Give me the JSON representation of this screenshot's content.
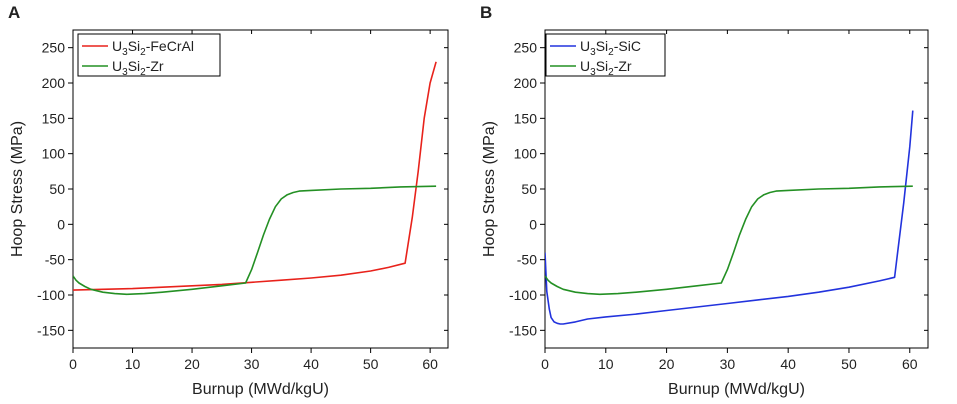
{
  "chart_data": [
    {
      "panel": "A",
      "type": "line",
      "xlabel": "Burnup (MWd/kgU)",
      "ylabel": "Hoop Stress (MPa)",
      "xlim": [
        0,
        63
      ],
      "ylim": [
        -175,
        275
      ],
      "xticks": [
        "0",
        "10",
        "20",
        "30",
        "40",
        "50",
        "60"
      ],
      "yticks": [
        "-150",
        "-100",
        "-50",
        "0",
        "50",
        "100",
        "150",
        "200",
        "250"
      ],
      "legend_position": "top-left",
      "series": [
        {
          "name": "U3Si2-FeCrAl",
          "legend_base": "U",
          "legend_parts": [
            [
              "3",
              "Si"
            ],
            [
              "2",
              "-FeCrAl"
            ]
          ],
          "color": "#e8221b",
          "x": [
            0,
            5,
            10,
            15,
            20,
            25,
            30,
            35,
            40,
            45,
            50,
            53,
            55.8,
            57,
            58,
            59,
            60,
            61
          ],
          "y": [
            -93,
            -92,
            -91,
            -89,
            -87,
            -85,
            -82,
            -79,
            -76,
            -72,
            -66,
            -61,
            -55,
            10,
            75,
            150,
            200,
            230
          ]
        },
        {
          "name": "U3Si2-Zr",
          "legend_base": "U",
          "legend_parts": [
            [
              "3",
              "Si"
            ],
            [
              "2",
              "-Zr"
            ]
          ],
          "color": "#249024",
          "x": [
            0,
            0.5,
            1,
            2,
            3,
            5,
            7,
            9,
            12,
            15,
            20,
            25,
            29,
            30,
            31,
            32,
            33,
            34,
            35,
            36,
            37,
            38,
            40,
            45,
            50,
            55,
            61
          ],
          "y": [
            -73,
            -79,
            -83,
            -88,
            -92,
            -96,
            -98,
            -99,
            -98,
            -96,
            -92,
            -87,
            -83,
            -64,
            -40,
            -15,
            7,
            25,
            36,
            42,
            45,
            47,
            48,
            50,
            51,
            53,
            54
          ]
        }
      ]
    },
    {
      "panel": "B",
      "type": "line",
      "xlabel": "Burnup (MWd/kgU)",
      "ylabel": "Hoop Stress (MPa)",
      "xlim": [
        0,
        63
      ],
      "ylim": [
        -175,
        275
      ],
      "xticks": [
        "0",
        "10",
        "20",
        "30",
        "40",
        "50",
        "60"
      ],
      "yticks": [
        "-150",
        "-100",
        "-50",
        "0",
        "50",
        "100",
        "150",
        "200",
        "250"
      ],
      "legend_position": "top-left",
      "series": [
        {
          "name": "U3Si2-SiC",
          "legend_base": "U",
          "legend_parts": [
            [
              "3",
              "Si"
            ],
            [
              "2",
              "-SiC"
            ]
          ],
          "color": "#2233dd",
          "x": [
            0,
            0.3,
            0.7,
            1,
            1.5,
            2,
            2.5,
            3,
            5,
            7,
            10,
            15,
            20,
            25,
            30,
            35,
            40,
            45,
            50,
            55,
            57.5,
            58,
            59,
            60,
            60.5
          ],
          "y": [
            -40,
            -95,
            -120,
            -132,
            -138,
            -140,
            -141,
            -141,
            -138,
            -134,
            -131,
            -127,
            -122,
            -117,
            -112,
            -107,
            -102,
            -96,
            -89,
            -80,
            -75,
            -40,
            30,
            110,
            161
          ]
        },
        {
          "name": "U3Si2-Zr",
          "legend_base": "U",
          "legend_parts": [
            [
              "3",
              "Si"
            ],
            [
              "2",
              "-Zr"
            ]
          ],
          "color": "#249024",
          "x": [
            0,
            0.5,
            1,
            2,
            3,
            5,
            7,
            9,
            12,
            15,
            20,
            25,
            29,
            30,
            31,
            32,
            33,
            34,
            35,
            36,
            37,
            38,
            40,
            45,
            50,
            55,
            60.5
          ],
          "y": [
            -73,
            -79,
            -83,
            -88,
            -92,
            -96,
            -98,
            -99,
            -98,
            -96,
            -92,
            -87,
            -83,
            -64,
            -40,
            -15,
            7,
            25,
            36,
            42,
            45,
            47,
            48,
            50,
            51,
            53,
            54
          ]
        }
      ]
    }
  ]
}
